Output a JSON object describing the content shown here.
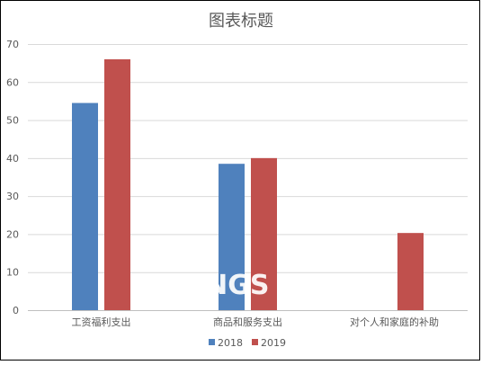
{
  "chart_data": {
    "type": "bar",
    "title": "图表标题",
    "categories": [
      "工资福利支出",
      "商品和服务支出",
      "对个人和家庭的补助"
    ],
    "series": [
      {
        "name": "2018",
        "values": [
          54.5,
          38.5,
          null
        ],
        "color": "#4F81BD"
      },
      {
        "name": "2019",
        "values": [
          66,
          40,
          20.3
        ],
        "color": "#C0504D"
      }
    ],
    "ylim": [
      0,
      70
    ],
    "yticks": [
      "0",
      "10",
      "20",
      "30",
      "40",
      "50",
      "60",
      "70"
    ],
    "grid": true,
    "legend_position": "bottom"
  },
  "watermark": "INGS       .C"
}
